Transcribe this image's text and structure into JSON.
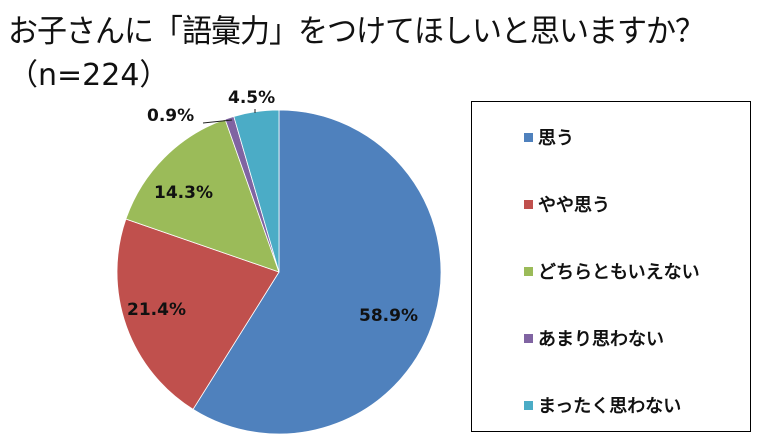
{
  "header": {
    "title": "お子さんに「語彙力」をつけてほしいと思いますか？",
    "subtitle": "（n=224）"
  },
  "legend": {
    "items": [
      {
        "label": "思う",
        "color": "#4F81BD"
      },
      {
        "label": "やや思う",
        "color": "#C0504D"
      },
      {
        "label": "どちらともいえない",
        "color": "#9BBB59"
      },
      {
        "label": "あまり思わない",
        "color": "#8064A2"
      },
      {
        "label": "まったく思わない",
        "color": "#4BACC6"
      }
    ]
  },
  "labels": {
    "s0": "58.9%",
    "s1": "21.4%",
    "s2": "14.3%",
    "s3": "0.9%",
    "s4": "4.5%"
  },
  "chart_data": {
    "type": "pie",
    "title": "お子さんに「語彙力」をつけてほしいと思いますか？",
    "subtitle": "（n=224）",
    "categories": [
      "思う",
      "やや思う",
      "どちらともいえない",
      "あまり思わない",
      "まったく思わない"
    ],
    "values": [
      58.9,
      21.4,
      14.3,
      0.9,
      4.5
    ],
    "unit": "%",
    "colors": [
      "#4F81BD",
      "#C0504D",
      "#9BBB59",
      "#8064A2",
      "#4BACC6"
    ],
    "start_angle": "12 o'clock, clockwise",
    "legend_position": "right",
    "data_labels": [
      "58.9%",
      "21.4%",
      "14.3%",
      "0.9%",
      "4.5%"
    ]
  }
}
